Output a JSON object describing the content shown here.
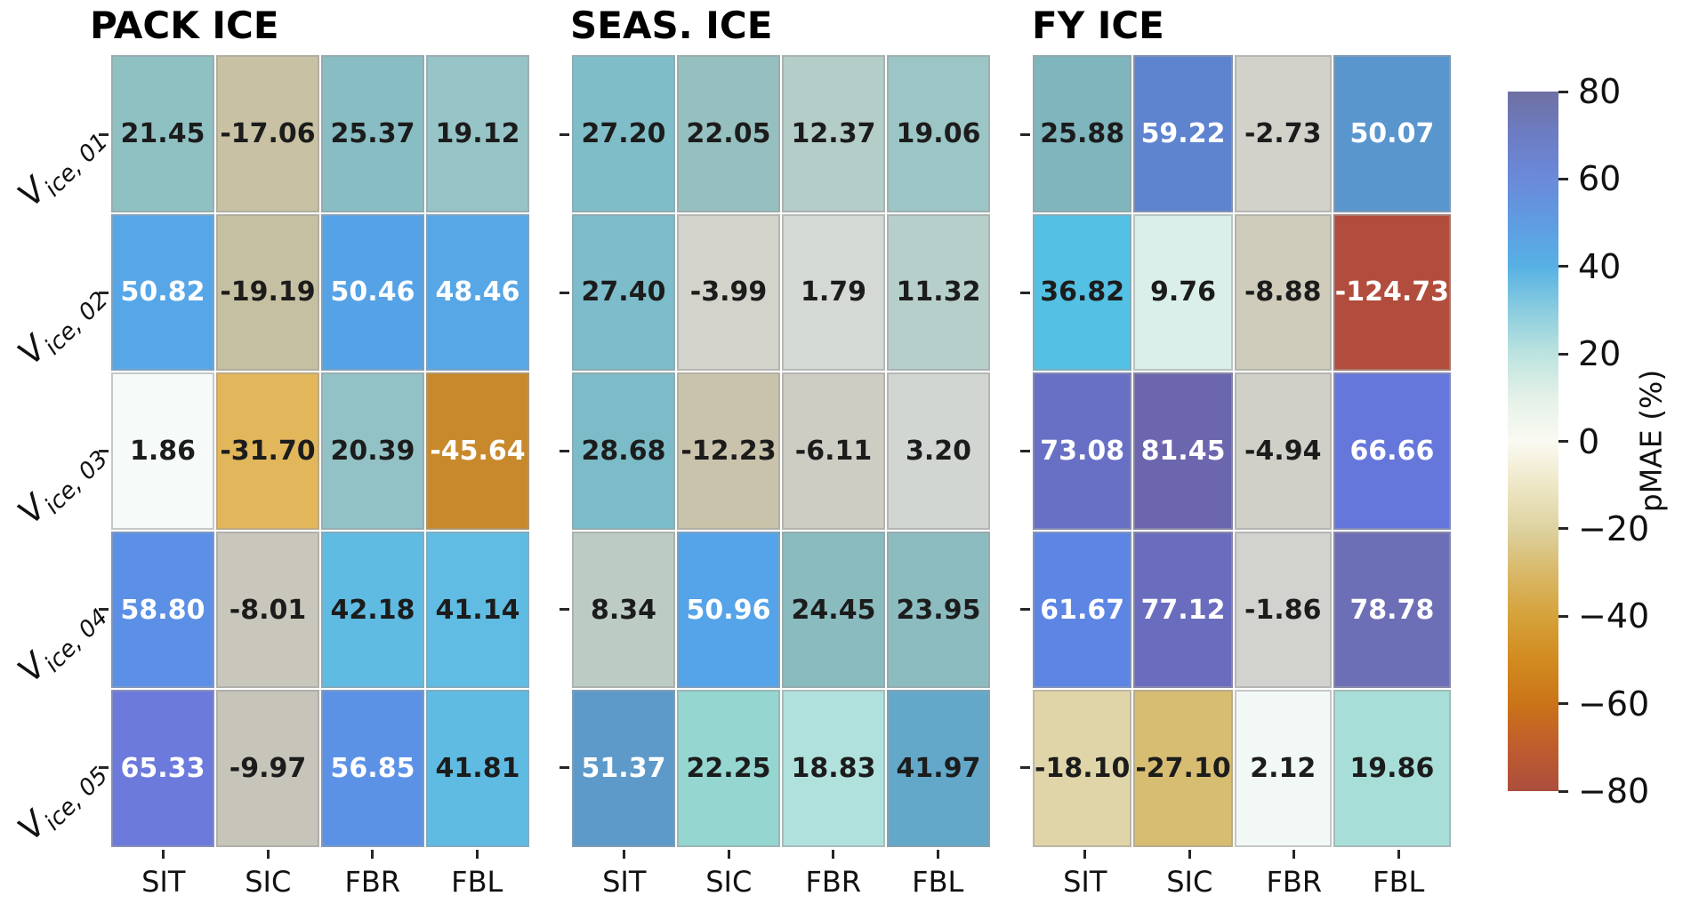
{
  "chart_data": {
    "type": "heatmap",
    "value_label": "pMAE (%)",
    "value_text_dark": "#1c1c1c",
    "value_text_light": "#ffffff",
    "columns": [
      "SIT",
      "SIC",
      "FBR",
      "FBL"
    ],
    "row_labels": [
      {
        "base": "V",
        "sub": "ice, 01"
      },
      {
        "base": "V",
        "sub": "ice, 02"
      },
      {
        "base": "V",
        "sub": "ice, 03"
      },
      {
        "base": "V",
        "sub": "ice, 04"
      },
      {
        "base": "V",
        "sub": "ice, 05"
      }
    ],
    "panels": [
      {
        "title": "PACK ICE",
        "cells": [
          [
            {
              "v": 21.45,
              "c": "#8fc1c3",
              "t": "k"
            },
            {
              "v": -17.06,
              "c": "#c8c1a4",
              "t": "k"
            },
            {
              "v": 25.37,
              "c": "#87bdc3",
              "t": "k"
            },
            {
              "v": 19.12,
              "c": "#97c4c6",
              "t": "k"
            }
          ],
          [
            {
              "v": 50.82,
              "c": "#57a7e8",
              "t": "w"
            },
            {
              "v": -19.19,
              "c": "#c6c0a2",
              "t": "k"
            },
            {
              "v": 50.46,
              "c": "#55a2e6",
              "t": "w"
            },
            {
              "v": 48.46,
              "c": "#57a6e6",
              "t": "w"
            }
          ],
          [
            {
              "v": 1.86,
              "c": "#f6faf8",
              "t": "k"
            },
            {
              "v": -31.7,
              "c": "#e2b75c",
              "t": "k"
            },
            {
              "v": 20.39,
              "c": "#93c2c6",
              "t": "k"
            },
            {
              "v": -45.64,
              "c": "#c8892d",
              "t": "w"
            }
          ],
          [
            {
              "v": 58.8,
              "c": "#5b90e6",
              "t": "w"
            },
            {
              "v": -8.01,
              "c": "#c9c6bb",
              "t": "k"
            },
            {
              "v": 42.18,
              "c": "#5fbbe2",
              "t": "k"
            },
            {
              "v": 41.14,
              "c": "#60bce2",
              "t": "k"
            }
          ],
          [
            {
              "v": 65.33,
              "c": "#6c7adc",
              "t": "w"
            },
            {
              "v": -9.97,
              "c": "#c7c4ba",
              "t": "k"
            },
            {
              "v": 56.85,
              "c": "#5c92e6",
              "t": "w"
            },
            {
              "v": 41.81,
              "c": "#5fbbe2",
              "t": "k"
            }
          ]
        ]
      },
      {
        "title": "SEAS. ICE",
        "cells": [
          [
            {
              "v": 27.2,
              "c": "#7fbdc9",
              "t": "k"
            },
            {
              "v": 22.05,
              "c": "#96c0bf",
              "t": "k"
            },
            {
              "v": 12.37,
              "c": "#b4cdc8",
              "t": "k"
            },
            {
              "v": 19.06,
              "c": "#9cc5c5",
              "t": "k"
            }
          ],
          [
            {
              "v": 27.4,
              "c": "#7dbcca",
              "t": "k"
            },
            {
              "v": -3.99,
              "c": "#d3d3cb",
              "t": "k"
            },
            {
              "v": 1.79,
              "c": "#d5d9d5",
              "t": "k"
            },
            {
              "v": 11.32,
              "c": "#b7cfcb",
              "t": "k"
            }
          ],
          [
            {
              "v": 28.68,
              "c": "#7cbcc8",
              "t": "k"
            },
            {
              "v": -12.23,
              "c": "#c9c3ab",
              "t": "k"
            },
            {
              "v": -6.11,
              "c": "#cecdc4",
              "t": "k"
            },
            {
              "v": 3.2,
              "c": "#d1d6d3",
              "t": "k"
            }
          ],
          [
            {
              "v": 8.34,
              "c": "#bdcbc5",
              "t": "k"
            },
            {
              "v": 50.96,
              "c": "#55a3e8",
              "t": "w"
            },
            {
              "v": 24.45,
              "c": "#8abbbf",
              "t": "k"
            },
            {
              "v": 23.95,
              "c": "#8cbcc0",
              "t": "k"
            }
          ],
          [
            {
              "v": 51.37,
              "c": "#5d99c9",
              "t": "w"
            },
            {
              "v": 22.25,
              "c": "#95d6d1",
              "t": "k"
            },
            {
              "v": 18.83,
              "c": "#b1e1dd",
              "t": "k"
            },
            {
              "v": 41.97,
              "c": "#63a7c9",
              "t": "k"
            }
          ]
        ]
      },
      {
        "title": "FY ICE",
        "cells": [
          [
            {
              "v": 25.88,
              "c": "#7fb6bd",
              "t": "k"
            },
            {
              "v": 59.22,
              "c": "#5e83cf",
              "t": "w"
            },
            {
              "v": -2.73,
              "c": "#d2d2cb",
              "t": "k"
            },
            {
              "v": 50.07,
              "c": "#5a96ce",
              "t": "w"
            }
          ],
          [
            {
              "v": 36.82,
              "c": "#54c0e3",
              "t": "k"
            },
            {
              "v": 9.76,
              "c": "#daefe9",
              "t": "k"
            },
            {
              "v": -8.88,
              "c": "#cfccbb",
              "t": "k"
            },
            {
              "v": -124.73,
              "c": "#b24c3c",
              "t": "w"
            }
          ],
          [
            {
              "v": 73.08,
              "c": "#6770c4",
              "t": "w"
            },
            {
              "v": 81.45,
              "c": "#6b66ad",
              "t": "w"
            },
            {
              "v": -4.94,
              "c": "#d0d0c9",
              "t": "k"
            },
            {
              "v": 66.66,
              "c": "#6577da",
              "t": "w"
            }
          ],
          [
            {
              "v": 61.67,
              "c": "#5c85e4",
              "t": "w"
            },
            {
              "v": 77.12,
              "c": "#6a6cbd",
              "t": "w"
            },
            {
              "v": -1.86,
              "c": "#d2d3cf",
              "t": "k"
            },
            {
              "v": 78.78,
              "c": "#6d6fb6",
              "t": "w"
            }
          ],
          [
            {
              "v": -18.1,
              "c": "#e0d5a8",
              "t": "k"
            },
            {
              "v": -27.1,
              "c": "#d7bd72",
              "t": "k"
            },
            {
              "v": 2.12,
              "c": "#f2f8f6",
              "t": "k"
            },
            {
              "v": 19.86,
              "c": "#a8ded8",
              "t": "k"
            }
          ]
        ]
      }
    ],
    "colorbar": {
      "label": "pMAE (%)",
      "vmin": -80,
      "vmax": 80,
      "ticks": [
        {
          "v": 80,
          "label": "80"
        },
        {
          "v": 60,
          "label": "60"
        },
        {
          "v": 40,
          "label": "40"
        },
        {
          "v": 20,
          "label": "20"
        },
        {
          "v": 0,
          "label": "0"
        },
        {
          "v": -20,
          "label": "−20"
        },
        {
          "v": -40,
          "label": "−40"
        },
        {
          "v": -60,
          "label": "−60"
        },
        {
          "v": -80,
          "label": "−80"
        }
      ],
      "gradient_stops": [
        {
          "v": 80,
          "c": "#6f70a2"
        },
        {
          "v": 70,
          "c": "#6d7dc4"
        },
        {
          "v": 60,
          "c": "#6a8ada"
        },
        {
          "v": 50,
          "c": "#5f9ce2"
        },
        {
          "v": 40,
          "c": "#57b1e4"
        },
        {
          "v": 30,
          "c": "#8accdf"
        },
        {
          "v": 20,
          "c": "#bce3df"
        },
        {
          "v": 10,
          "c": "#e4f1e8"
        },
        {
          "v": 0,
          "c": "#fafaf2"
        },
        {
          "v": -10,
          "c": "#eee7c6"
        },
        {
          "v": -20,
          "c": "#ddd2a0"
        },
        {
          "v": -30,
          "c": "#d9b868"
        },
        {
          "v": -40,
          "c": "#d5a23a"
        },
        {
          "v": -50,
          "c": "#d28b20"
        },
        {
          "v": -60,
          "c": "#ca7418"
        },
        {
          "v": -70,
          "c": "#bf5c2e"
        },
        {
          "v": -80,
          "c": "#ab4e3d"
        }
      ]
    }
  }
}
